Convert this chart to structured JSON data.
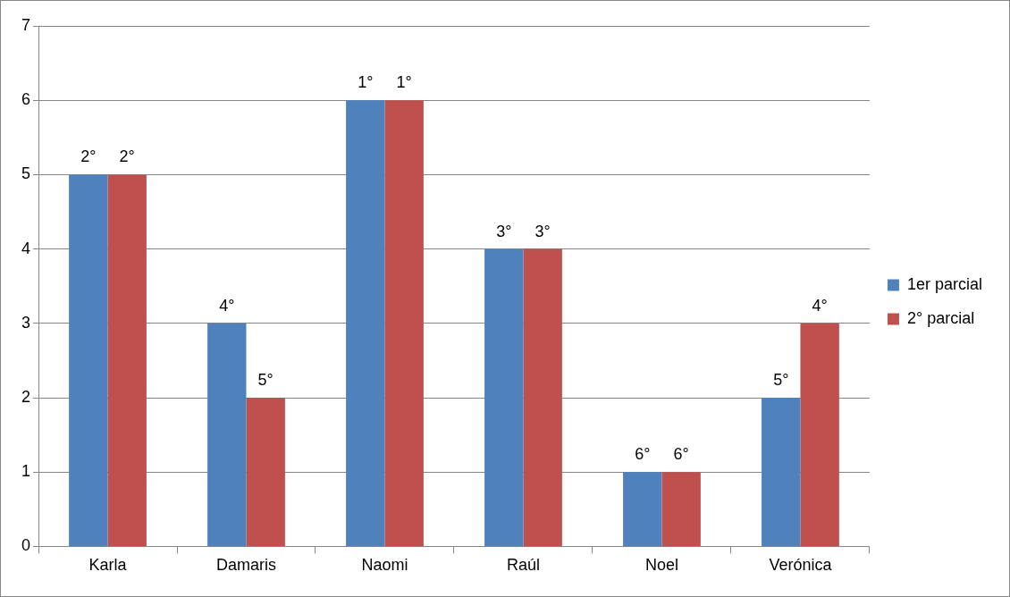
{
  "chart_data": {
    "type": "bar",
    "categories": [
      "Karla",
      "Damaris",
      "Naomi",
      "Raúl",
      "Noel",
      "Verónica"
    ],
    "series": [
      {
        "name": "1er parcial",
        "color": "#4f81bd",
        "values": [
          5,
          3,
          6,
          4,
          1,
          2
        ]
      },
      {
        "name": "2° parcial",
        "color": "#c0504d",
        "values": [
          5,
          2,
          6,
          4,
          1,
          3
        ]
      }
    ],
    "annotations": [
      {
        "text": "2°",
        "x": "Karla",
        "y": 5
      },
      {
        "text": "2°",
        "x": "Karla",
        "y": 5
      },
      {
        "text": "4°",
        "x": "Damaris",
        "y": 3
      },
      {
        "text": "5°",
        "x": "Damaris",
        "y": 2
      },
      {
        "text": "1°",
        "x": "Naomi",
        "y": 6
      },
      {
        "text": "1°",
        "x": "Naomi",
        "y": 6
      },
      {
        "text": "3°",
        "x": "Raúl",
        "y": 4
      },
      {
        "text": "3°",
        "x": "Raúl",
        "y": 4
      },
      {
        "text": "6°",
        "x": "Noel",
        "y": 1
      },
      {
        "text": "6°",
        "x": "Noel",
        "y": 1
      },
      {
        "text": "5°",
        "x": "Verónica",
        "y": 2
      },
      {
        "text": "4°",
        "x": "Verónica",
        "y": 3
      }
    ],
    "ylim": [
      0,
      7
    ],
    "yticks": [
      0,
      1,
      2,
      3,
      4,
      5,
      6,
      7
    ],
    "grid": "y",
    "legend": "right"
  }
}
